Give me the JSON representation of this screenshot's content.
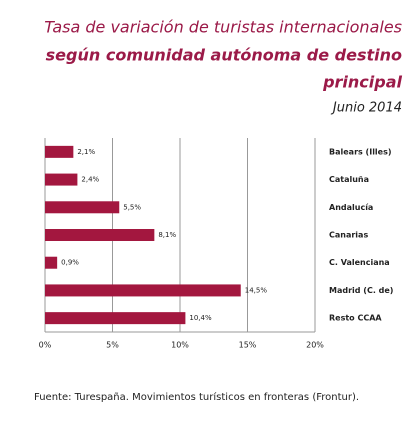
{
  "chart_data": {
    "type": "bar",
    "orientation": "horizontal",
    "title": "Tasa de variación de turistas internacionales",
    "subtitle": [
      "según comunidad autónoma de destino",
      "principal"
    ],
    "date": "Junio 2014",
    "categories": [
      "Balears (Illes)",
      "Cataluña",
      "Andalucía",
      "Canarias",
      "C. Valenciana",
      "Madrid (C. de)",
      "Resto  CCAA"
    ],
    "values": [
      2.1,
      2.4,
      5.5,
      8.1,
      0.9,
      14.5,
      10.4
    ],
    "value_labels": [
      "2,1%",
      "2,4%",
      "5,5%",
      "8,1%",
      "0,9%",
      "14,5%",
      "10,4%"
    ],
    "color": "#a3173f",
    "xlim": [
      0,
      20
    ],
    "xticks": [
      {
        "value": 0,
        "label": "0%"
      },
      {
        "value": 5,
        "label": "5%"
      },
      {
        "value": 10,
        "label": "10%"
      },
      {
        "value": 15,
        "label": "15%"
      },
      {
        "value": 20,
        "label": "20%"
      }
    ],
    "grid": true,
    "source": "Fuente: Turespaña. Movimientos turísticos en fronteras (Frontur)."
  }
}
